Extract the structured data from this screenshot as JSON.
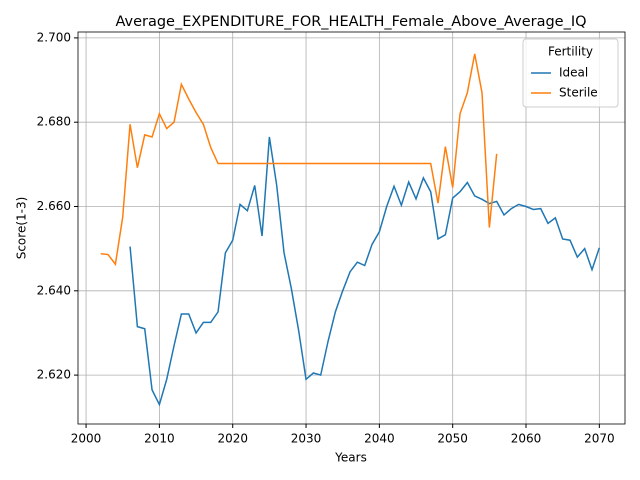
{
  "chart_data": {
    "type": "line",
    "title": "Average_EXPENDITURE_FOR_HEALTH_Female_Above_Average_IQ",
    "xlabel": "Years",
    "ylabel": "Score(1-3)",
    "legend_title": "Fertility",
    "legend": "upper right",
    "grid": true,
    "x": [
      2002,
      2003,
      2004,
      2005,
      2006,
      2007,
      2008,
      2009,
      2010,
      2011,
      2012,
      2013,
      2014,
      2015,
      2016,
      2017,
      2018,
      2019,
      2020,
      2021,
      2022,
      2023,
      2024,
      2025,
      2026,
      2027,
      2028,
      2029,
      2030,
      2031,
      2032,
      2033,
      2034,
      2035,
      2036,
      2037,
      2038,
      2039,
      2040,
      2041,
      2042,
      2043,
      2044,
      2045,
      2046,
      2047,
      2048,
      2049,
      2050,
      2051,
      2052,
      2053,
      2054,
      2055,
      2056,
      2057,
      2058,
      2059,
      2060,
      2061,
      2062,
      2063,
      2064,
      2065,
      2066,
      2067,
      2068,
      2069,
      2070
    ],
    "series": [
      {
        "name": "Ideal",
        "color": "#1f77b4",
        "values": [
          null,
          null,
          null,
          null,
          2.6505,
          2.6315,
          2.631,
          2.6165,
          2.613,
          2.619,
          2.627,
          2.6345,
          2.6345,
          2.63,
          2.6325,
          2.6325,
          2.635,
          2.649,
          2.652,
          2.6605,
          2.659,
          2.665,
          2.653,
          2.6765,
          2.665,
          2.649,
          2.6405,
          2.6305,
          2.619,
          2.6205,
          2.62,
          2.628,
          2.635,
          2.64,
          2.6445,
          2.6468,
          2.646,
          2.651,
          2.654,
          2.66,
          2.6648,
          2.6603,
          2.6658,
          2.6618,
          2.6668,
          2.6635,
          2.6523,
          2.6533,
          2.662,
          2.6635,
          2.6657,
          2.6625,
          2.6617,
          2.6607,
          2.6612,
          2.658,
          2.6595,
          2.6605,
          2.66,
          2.6593,
          2.6595,
          2.656,
          2.6573,
          2.6523,
          2.652,
          2.648,
          2.65,
          2.645,
          2.6502
        ]
      },
      {
        "name": "Sterile",
        "color": "#ff7f0e",
        "values": [
          2.6488,
          2.6486,
          2.6463,
          2.6575,
          2.6795,
          2.6692,
          2.677,
          2.6765,
          2.682,
          2.6785,
          2.68,
          2.689,
          2.6855,
          2.6823,
          2.6795,
          2.674,
          2.6702,
          2.6702,
          2.6702,
          2.6702,
          2.6702,
          2.6702,
          2.6702,
          2.6702,
          2.6702,
          2.6702,
          2.6702,
          2.6702,
          2.6702,
          2.6702,
          2.6702,
          2.6702,
          2.6702,
          2.6702,
          2.6702,
          2.6702,
          2.6702,
          2.6702,
          2.6702,
          2.6702,
          2.6702,
          2.6702,
          2.6702,
          2.6702,
          2.6702,
          2.6702,
          2.6608,
          2.6742,
          2.6645,
          2.682,
          2.687,
          2.6962,
          2.687,
          2.655,
          2.6725,
          null,
          null,
          null,
          null,
          null,
          null,
          null,
          null,
          null,
          null,
          null,
          null,
          null,
          null
        ]
      }
    ],
    "xlim": [
      1998.9,
      2073.5
    ],
    "xticks": [
      2000,
      2010,
      2020,
      2030,
      2040,
      2050,
      2060,
      2070
    ],
    "ylim": [
      2.6084,
      2.7014
    ],
    "yticks": [
      {
        "value": 2.62,
        "label": "2.620"
      },
      {
        "value": 2.64,
        "label": "2.640"
      },
      {
        "value": 2.66,
        "label": "2.660"
      },
      {
        "value": 2.68,
        "label": "2.680"
      },
      {
        "value": 2.7,
        "label": "2.700"
      }
    ]
  }
}
